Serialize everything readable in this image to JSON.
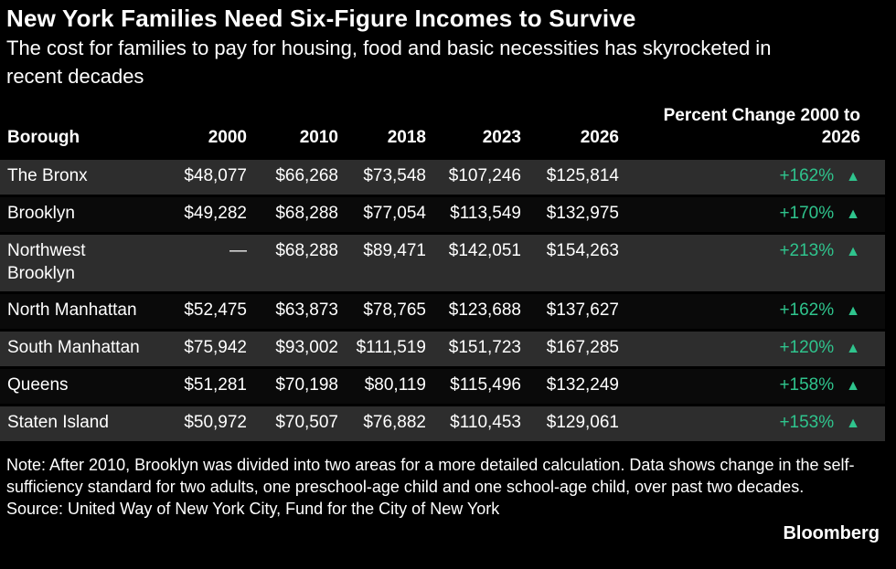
{
  "header": {
    "title": "New York Families Need Six-Figure Incomes to Survive",
    "subtitle": "The cost for families to pay for housing, food and basic necessities has skyrocketed in recent decades"
  },
  "chart_data": {
    "type": "table",
    "title": "New York Families Need Six-Figure Incomes to Survive",
    "columns": [
      "Borough",
      "2000",
      "2010",
      "2018",
      "2023",
      "2026",
      "Percent Change 2000 to 2026"
    ],
    "up_arrow": "▲",
    "rows": [
      {
        "borough": "The Bronx",
        "values": [
          "$48,077",
          "$66,268",
          "$73,548",
          "$107,246",
          "$125,814"
        ],
        "change": "+162%",
        "direction": "up"
      },
      {
        "borough": "Brooklyn",
        "values": [
          "$49,282",
          "$68,288",
          "$77,054",
          "$113,549",
          "$132,975"
        ],
        "change": "+170%",
        "direction": "up"
      },
      {
        "borough": "Northwest Brooklyn",
        "values": [
          "—",
          "$68,288",
          "$89,471",
          "$142,051",
          "$154,263"
        ],
        "change": "+213%",
        "direction": "up"
      },
      {
        "borough": "North Manhattan",
        "values": [
          "$52,475",
          "$63,873",
          "$78,765",
          "$123,688",
          "$137,627"
        ],
        "change": "+162%",
        "direction": "up"
      },
      {
        "borough": "South Manhattan",
        "values": [
          "$75,942",
          "$93,002",
          "$111,519",
          "$151,723",
          "$167,285"
        ],
        "change": "+120%",
        "direction": "up"
      },
      {
        "borough": "Queens",
        "values": [
          "$51,281",
          "$70,198",
          "$80,119",
          "$115,496",
          "$132,249"
        ],
        "change": "+158%",
        "direction": "up"
      },
      {
        "borough": "Staten Island",
        "values": [
          "$50,972",
          "$70,507",
          "$76,882",
          "$110,453",
          "$129,061"
        ],
        "change": "+153%",
        "direction": "up"
      }
    ]
  },
  "footer": {
    "note": "Note: After 2010, Brooklyn was divided into two areas for a more detailed calculation. Data shows change in the self-sufficiency standard for two adults, one preschool-age child and one school-age child, over past two decades.",
    "source": "Source: United Way of New York City, Fund for the City of New York",
    "brand": "Bloomberg"
  },
  "colors": {
    "background": "#000000",
    "text": "#FFFFFF",
    "row_stripe": "#2D2D2D",
    "row_plain": "#0A0A0A",
    "header_rule": "#C9C9C9",
    "positive_green": "#2FC48D"
  }
}
